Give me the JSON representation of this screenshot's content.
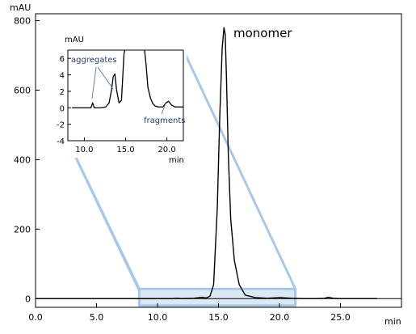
{
  "chart_data": {
    "type": "line",
    "main": {
      "y_unit": "mAU",
      "x_unit": "min",
      "xlim": [
        0,
        30
      ],
      "ylim": [
        -25,
        820
      ],
      "x_ticks": [
        0,
        5,
        10,
        15,
        20,
        25
      ],
      "x_tick_labels": [
        "0.0",
        "5.0",
        "10.0",
        "15.0",
        "20.0",
        "25.0"
      ],
      "y_ticks": [
        0,
        200,
        400,
        600,
        800
      ],
      "y_tick_labels": [
        "0",
        "200",
        "400",
        "600",
        "800"
      ],
      "annotation": "monomer",
      "series": [
        {
          "x": [
            0,
            5,
            10,
            11.2,
            11.5,
            12,
            13,
            13.6,
            14.0,
            14.3,
            14.6,
            14.9,
            15.1,
            15.3,
            15.45,
            15.55,
            15.65,
            15.8,
            16.0,
            16.3,
            16.7,
            17.2,
            18,
            19,
            20,
            21,
            22,
            23,
            23.7,
            24.0,
            24.4,
            25,
            26,
            27,
            28
          ],
          "y": [
            0,
            0,
            0,
            0,
            1,
            0,
            1,
            4,
            2,
            7,
            40,
            260,
            520,
            720,
            780,
            760,
            640,
            420,
            230,
            110,
            40,
            10,
            3,
            1,
            3,
            1,
            0,
            0,
            1,
            4,
            1,
            0,
            0,
            0,
            0
          ],
          "color": "#000000"
        }
      ],
      "zoom_region": {
        "x": [
          8.5,
          21.3
        ],
        "y": [
          -20,
          28
        ]
      }
    },
    "inset": {
      "y_unit": "mAU",
      "x_unit": "min",
      "xlim": [
        8,
        22
      ],
      "ylim": [
        -4,
        7
      ],
      "x_ticks": [
        10,
        15,
        20
      ],
      "x_tick_labels": [
        "10.0",
        "15.0",
        "20.0"
      ],
      "y_ticks": [
        -4,
        -2,
        0,
        2,
        4,
        6
      ],
      "y_tick_labels": [
        "-4",
        "-2",
        "0",
        "2",
        "4",
        "6"
      ],
      "annotations": [
        "aggregates",
        "fragments"
      ],
      "series": [
        {
          "x": [
            8.5,
            10,
            10.8,
            11.0,
            11.1,
            11.2,
            11.4,
            12,
            12.6,
            13.0,
            13.3,
            13.5,
            13.7,
            13.9,
            14.2,
            14.5,
            14.8,
            15.1,
            15.4,
            15.8,
            16.3,
            16.8,
            17.2,
            17.5,
            17.7,
            18.0,
            18.3,
            18.6,
            19.0,
            19.5,
            19.9,
            20.2,
            20.6,
            21.0,
            21.5,
            22
          ],
          "y": [
            0,
            0,
            0,
            0.6,
            0.3,
            0,
            0,
            0,
            0.1,
            0.6,
            2.2,
            3.8,
            4.1,
            2.2,
            0.6,
            0.9,
            6.5,
            8,
            8,
            8,
            8,
            8,
            8,
            5.0,
            2.5,
            1.2,
            0.5,
            0.2,
            0.1,
            0.1,
            0.6,
            0.8,
            0.3,
            0.1,
            0.1,
            0.1
          ],
          "color": "#000000"
        }
      ]
    },
    "highlight_color": "#a9c8e8",
    "annotation_color": "#1f3f6f"
  }
}
